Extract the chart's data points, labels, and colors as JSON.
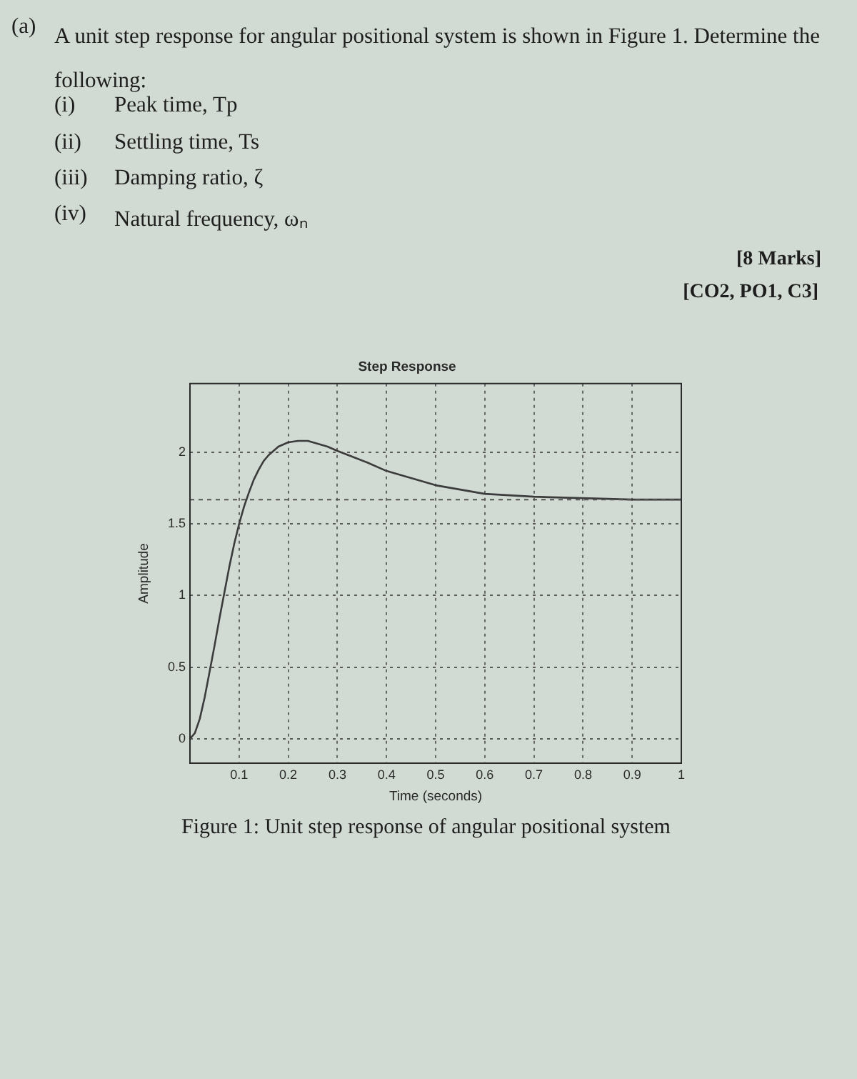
{
  "chart_data": {
    "type": "line",
    "title": "Step Response",
    "xlabel": "Time (seconds)",
    "ylabel": "Amplitude",
    "annotations": [
      "(a)",
      "A unit step response for angular positional system is shown in Figure 1. Determine the following:",
      "(i)",
      "Peak time, Tp",
      "(ii)",
      "Settling time, Ts",
      "(iii)",
      "Damping ratio, ζ",
      "(iv)",
      "Natural frequency, ωₙ",
      "[8 Marks]",
      "[CO2, PO1, C3]",
      "Figure 1: Unit step response of angular positional system"
    ],
    "x": [
      0,
      0.01,
      0.02,
      0.03,
      0.04,
      0.05,
      0.06,
      0.07,
      0.08,
      0.09,
      0.1,
      0.11,
      0.12,
      0.13,
      0.14,
      0.15,
      0.16,
      0.17,
      0.18,
      0.2,
      0.22,
      0.24,
      0.26,
      0.28,
      0.3,
      0.33,
      0.36,
      0.4,
      0.45,
      0.5,
      0.55,
      0.6,
      0.65,
      0.7,
      0.8,
      0.9,
      1
    ],
    "values": [
      0,
      0.04,
      0.14,
      0.29,
      0.47,
      0.65,
      0.84,
      1.02,
      1.2,
      1.36,
      1.5,
      1.62,
      1.72,
      1.81,
      1.88,
      1.94,
      1.98,
      2.01,
      2.04,
      2.07,
      2.08,
      2.08,
      2.06,
      2.04,
      2.01,
      1.97,
      1.93,
      1.87,
      1.82,
      1.77,
      1.74,
      1.71,
      1.7,
      1.69,
      1.68,
      1.67,
      1.67
    ],
    "color": "#3c3c3c",
    "xlim": [
      0,
      1
    ],
    "xticks": [
      0.1,
      0.2,
      0.3,
      0.4,
      0.5,
      0.6,
      0.7,
      0.8,
      0.9,
      1
    ],
    "ylim": [
      -0.17,
      2.48
    ],
    "yticks": [
      0,
      0.5,
      1,
      1.5,
      2
    ],
    "ref_lines": [
      {
        "axis": "y",
        "value": 1.67,
        "color": "#555555",
        "line_style": "dashed"
      }
    ],
    "grid": true,
    "marker": "none",
    "line_style": "solid"
  }
}
